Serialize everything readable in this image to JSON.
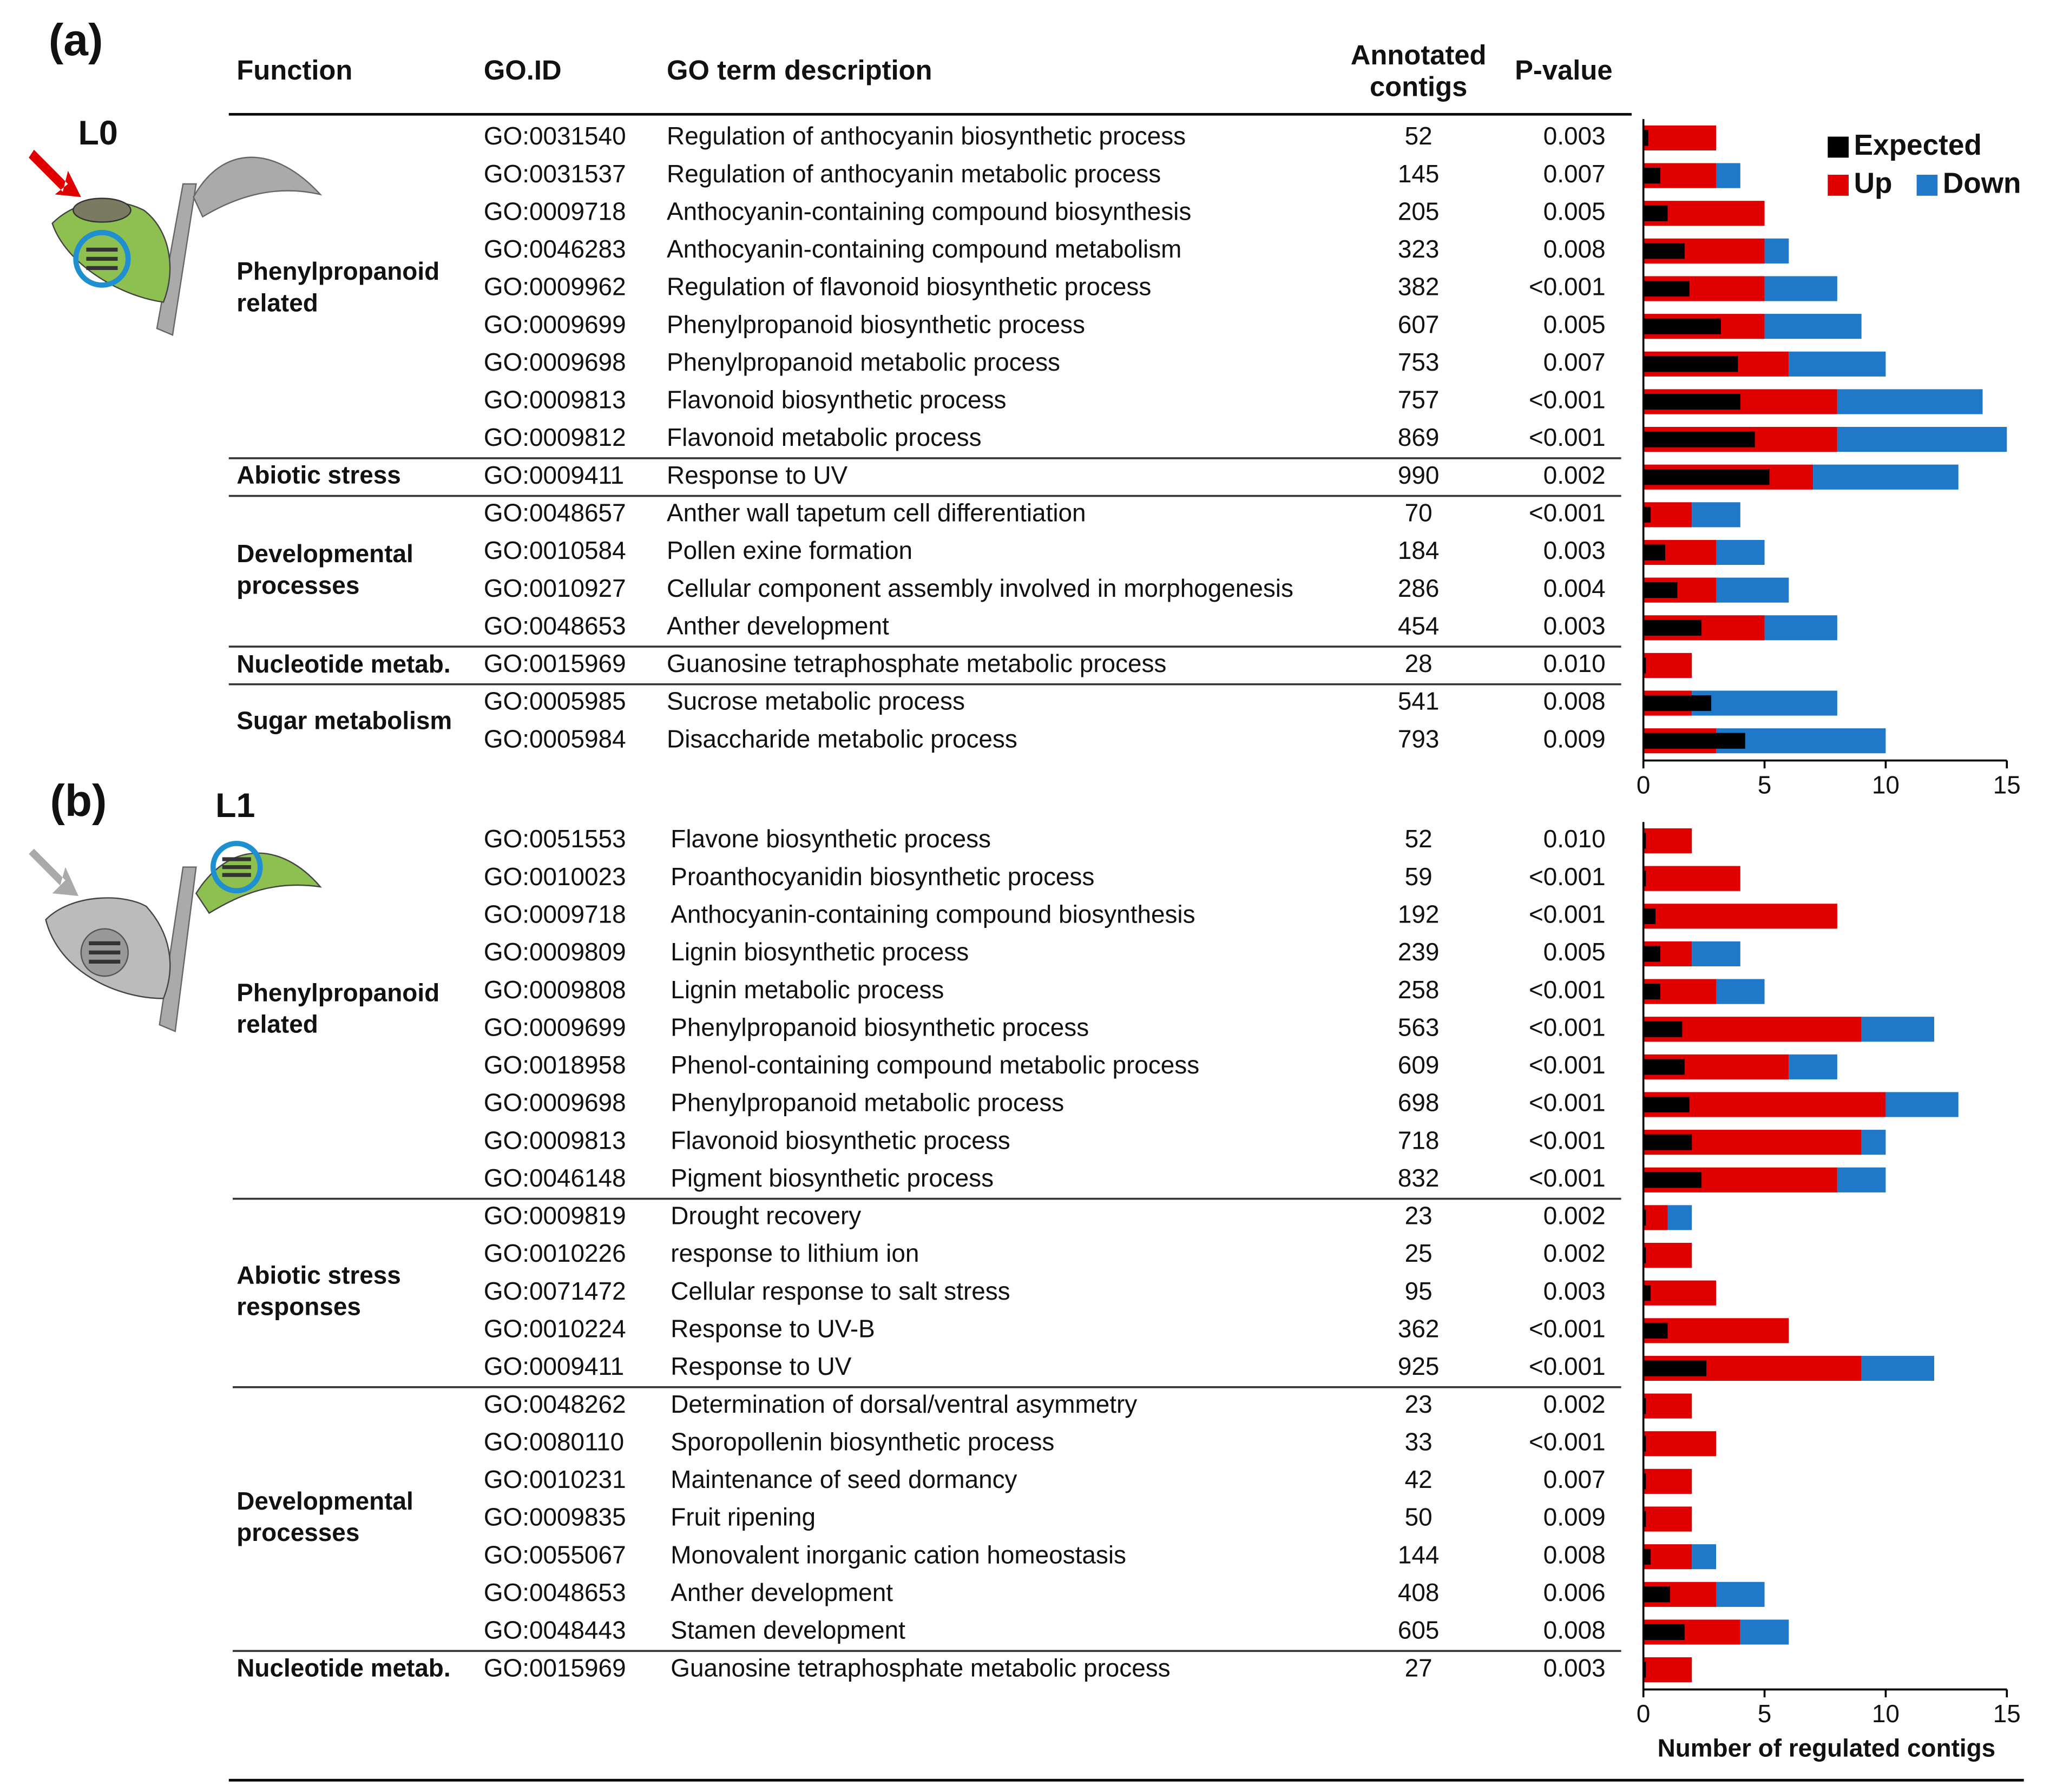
{
  "chart_data": [
    {
      "type": "bar",
      "panel_label": "(a)",
      "stage_label": "L0",
      "columns": [
        "Function",
        "GO.ID",
        "GO term description",
        "Annotated contigs",
        "P-value"
      ],
      "functions": [
        "Phenylpropanoid related",
        null,
        null,
        null,
        null,
        null,
        null,
        null,
        null,
        "Abiotic stress",
        "Developmental processes",
        null,
        null,
        null,
        "Nucleotide metab.",
        "Sugar metabolism",
        null
      ],
      "go_ids": [
        "GO:0031540",
        "GO:0031537",
        "GO:0009718",
        "GO:0046283",
        "GO:0009962",
        "GO:0009699",
        "GO:0009698",
        "GO:0009813",
        "GO:0009812",
        "GO:0009411",
        "GO:0048657",
        "GO:0010584",
        "GO:0010927",
        "GO:0048653",
        "GO:0015969",
        "GO:0005985",
        "GO:0005984"
      ],
      "categories": [
        "Regulation of anthocyanin biosynthetic process",
        "Regulation of anthocyanin metabolic process",
        "Anthocyanin-containing compound biosynthesis",
        "Anthocyanin-containing compound metabolism",
        "Regulation of flavonoid biosynthetic process",
        "Phenylpropanoid biosynthetic process",
        "Phenylpropanoid metabolic process",
        "Flavonoid biosynthetic process",
        "Flavonoid metabolic process",
        "Response to UV",
        "Anther wall tapetum cell differentiation",
        "Pollen exine formation",
        "Cellular component assembly involved in morphogenesis",
        "Anther development",
        "Guanosine tetraphosphate metabolic process",
        "Sucrose metabolic process",
        "Disaccharide metabolic process"
      ],
      "annotated_contigs": [
        52,
        145,
        205,
        323,
        382,
        607,
        753,
        757,
        869,
        990,
        70,
        184,
        286,
        454,
        28,
        541,
        793
      ],
      "p_values": [
        "0.003",
        "0.007",
        "0.005",
        "0.008",
        "<0.001",
        "0.005",
        "0.007",
        "<0.001",
        "<0.001",
        "0.002",
        "<0.001",
        "0.003",
        "0.004",
        "0.003",
        "0.010",
        "0.008",
        "0.009"
      ],
      "series": [
        {
          "name": "Up",
          "color": "#e00000",
          "values": [
            3,
            3,
            5,
            5,
            5,
            5,
            6,
            8,
            8,
            7,
            2,
            3,
            3,
            5,
            2,
            2,
            3
          ]
        },
        {
          "name": "Down",
          "color": "#1f78c8",
          "values": [
            0,
            1,
            0,
            1,
            3,
            4,
            4,
            6,
            7,
            6,
            2,
            2,
            3,
            3,
            0,
            6,
            7
          ]
        },
        {
          "name": "Expected",
          "color": "#000000",
          "overlay": true,
          "values": [
            0.2,
            0.7,
            1.0,
            1.7,
            1.9,
            3.2,
            3.9,
            4.0,
            4.6,
            5.2,
            0.3,
            0.9,
            1.4,
            2.4,
            0.1,
            2.8,
            4.2
          ]
        }
      ],
      "legend": "upper right",
      "xlim": [
        0,
        15
      ],
      "xticks": [
        0,
        5,
        10,
        15
      ]
    },
    {
      "type": "bar",
      "panel_label": "(b)",
      "stage_label": "L1",
      "functions": [
        "Phenylpropanoid related",
        null,
        null,
        null,
        null,
        null,
        null,
        null,
        null,
        null,
        "Abiotic stress responses",
        null,
        null,
        null,
        null,
        "Developmental processes",
        null,
        null,
        null,
        null,
        null,
        null,
        "Nucleotide metab."
      ],
      "go_ids": [
        "GO:0051553",
        "GO:0010023",
        "GO:0009718",
        "GO:0009809",
        "GO:0009808",
        "GO:0009699",
        "GO:0018958",
        "GO:0009698",
        "GO:0009813",
        "GO:0046148",
        "GO:0009819",
        "GO:0010226",
        "GO:0071472",
        "GO:0010224",
        "GO:0009411",
        "GO:0048262",
        "GO:0080110",
        "GO:0010231",
        "GO:0009835",
        "GO:0055067",
        "GO:0048653",
        "GO:0048443",
        "GO:0015969"
      ],
      "categories": [
        "Flavone biosynthetic process",
        "Proanthocyanidin biosynthetic process",
        "Anthocyanin-containing compound biosynthesis",
        "Lignin biosynthetic process",
        "Lignin metabolic process",
        "Phenylpropanoid biosynthetic process",
        "Phenol-containing compound metabolic process",
        "Phenylpropanoid metabolic process",
        "Flavonoid biosynthetic process",
        "Pigment biosynthetic process",
        "Drought recovery",
        "response to lithium ion",
        "Cellular response to salt stress",
        "Response to UV-B",
        "Response to UV",
        "Determination of dorsal/ventral asymmetry",
        "Sporopollenin biosynthetic process",
        "Maintenance of seed dormancy",
        "Fruit ripening",
        "Monovalent inorganic cation homeostasis",
        "Anther development",
        "Stamen development",
        "Guanosine tetraphosphate metabolic process"
      ],
      "annotated_contigs": [
        52,
        59,
        192,
        239,
        258,
        563,
        609,
        698,
        718,
        832,
        23,
        25,
        95,
        362,
        925,
        23,
        33,
        42,
        50,
        144,
        408,
        605,
        27
      ],
      "p_values": [
        "0.010",
        "<0.001",
        "<0.001",
        "0.005",
        "<0.001",
        "<0.001",
        "<0.001",
        "<0.001",
        "<0.001",
        "<0.001",
        "0.002",
        "0.002",
        "0.003",
        "<0.001",
        "<0.001",
        "0.002",
        "<0.001",
        "0.007",
        "0.009",
        "0.008",
        "0.006",
        "0.008",
        "0.003"
      ],
      "series": [
        {
          "color": "#e00000",
          "values": [
            2,
            4,
            8,
            2,
            3,
            9,
            6,
            10,
            9,
            8,
            1,
            2,
            3,
            6,
            9,
            2,
            3,
            2,
            2,
            2,
            3,
            4,
            2
          ]
        },
        {
          "color": "#1f78c8",
          "values": [
            0,
            0,
            0,
            2,
            2,
            3,
            2,
            3,
            1,
            2,
            1,
            0,
            0,
            0,
            3,
            0,
            0,
            0,
            0,
            1,
            2,
            2,
            0
          ]
        },
        {
          "color": "#000000",
          "overlay": true,
          "values": [
            0.1,
            0.1,
            0.5,
            0.7,
            0.7,
            1.6,
            1.7,
            1.9,
            2.0,
            2.4,
            0.1,
            0.1,
            0.3,
            1.0,
            2.6,
            0.1,
            0.1,
            0.1,
            0.1,
            0.3,
            1.1,
            1.7,
            0.1
          ]
        }
      ],
      "x_label": "Number of regulated contigs",
      "xlim": [
        0,
        15
      ],
      "xticks": [
        0,
        5,
        10,
        15
      ]
    }
  ]
}
